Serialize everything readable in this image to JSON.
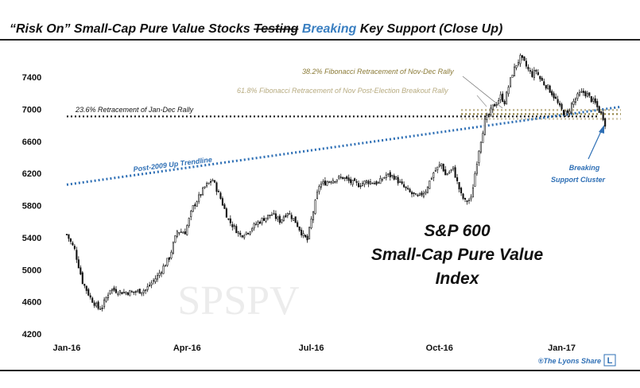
{
  "chart_data": {
    "type": "candlestick",
    "title": {
      "part1": "“Risk On” Small-Cap Pure Value Stocks ",
      "struck": "Testing",
      "highlight": "Breaking",
      "part2": " Key Support (Close Up)"
    },
    "index_name": [
      "S&P 600",
      "Small-Cap Pure Value",
      "Index"
    ],
    "watermark": "SPSPV",
    "credit": "®The Lyons Share",
    "credit_logo": "L",
    "y_ticks": [
      4200,
      4600,
      5000,
      5400,
      5800,
      6200,
      6600,
      7000,
      7400
    ],
    "ylim": [
      4120,
      7720
    ],
    "x_ticks": [
      "Jan-16",
      "Apr-16",
      "Jul-16",
      "Oct-16",
      "Jan-17"
    ],
    "x_anchor_points": [
      {
        "label": "Jan-16",
        "value": 0
      },
      {
        "label": "Apr-16",
        "value": 61
      },
      {
        "label": "Jul-16",
        "value": 124
      },
      {
        "label": "Oct-16",
        "value": 189
      },
      {
        "label": "Jan-17",
        "value": 251
      }
    ],
    "x_range": [
      -2,
      281
    ],
    "price_path": [
      [
        0,
        5440
      ],
      [
        4,
        5250
      ],
      [
        8,
        4850
      ],
      [
        12,
        4650
      ],
      [
        16,
        4520
      ],
      [
        18,
        4540
      ],
      [
        22,
        4760
      ],
      [
        28,
        4720
      ],
      [
        34,
        4720
      ],
      [
        40,
        4750
      ],
      [
        46,
        4920
      ],
      [
        52,
        5150
      ],
      [
        56,
        5480
      ],
      [
        60,
        5470
      ],
      [
        64,
        5780
      ],
      [
        70,
        6030
      ],
      [
        74,
        6120
      ],
      [
        78,
        5890
      ],
      [
        82,
        5620
      ],
      [
        88,
        5430
      ],
      [
        92,
        5480
      ],
      [
        96,
        5570
      ],
      [
        100,
        5640
      ],
      [
        104,
        5690
      ],
      [
        108,
        5610
      ],
      [
        112,
        5720
      ],
      [
        116,
        5600
      ],
      [
        120,
        5420
      ],
      [
        122,
        5370
      ],
      [
        124,
        5620
      ],
      [
        128,
        6050
      ],
      [
        134,
        6120
      ],
      [
        140,
        6150
      ],
      [
        144,
        6090
      ],
      [
        148,
        6060
      ],
      [
        152,
        6100
      ],
      [
        158,
        6080
      ],
      [
        162,
        6180
      ],
      [
        166,
        6160
      ],
      [
        170,
        6050
      ],
      [
        174,
        5960
      ],
      [
        178,
        5900
      ],
      [
        182,
        5990
      ],
      [
        186,
        6210
      ],
      [
        190,
        6320
      ],
      [
        192,
        6180
      ],
      [
        196,
        6260
      ],
      [
        198,
        6090
      ],
      [
        200,
        5930
      ],
      [
        202,
        5850
      ],
      [
        205,
        5880
      ],
      [
        207,
        6200
      ],
      [
        209,
        6500
      ],
      [
        210,
        6620
      ],
      [
        212,
        6850
      ],
      [
        214,
        6930
      ],
      [
        216,
        7030
      ],
      [
        218,
        7080
      ],
      [
        220,
        7160
      ],
      [
        222,
        7090
      ],
      [
        224,
        7280
      ],
      [
        226,
        7450
      ],
      [
        228,
        7560
      ],
      [
        230,
        7640
      ],
      [
        232,
        7580
      ],
      [
        234,
        7490
      ],
      [
        236,
        7430
      ],
      [
        238,
        7480
      ],
      [
        240,
        7380
      ],
      [
        242,
        7320
      ],
      [
        244,
        7270
      ],
      [
        246,
        7200
      ],
      [
        248,
        7120
      ],
      [
        250,
        7020
      ],
      [
        252,
        6960
      ],
      [
        254,
        6940
      ],
      [
        256,
        7060
      ],
      [
        258,
        7130
      ],
      [
        260,
        7190
      ],
      [
        262,
        7210
      ],
      [
        264,
        7180
      ],
      [
        266,
        7120
      ],
      [
        268,
        7070
      ],
      [
        270,
        6980
      ],
      [
        272,
        6900
      ],
      [
        273,
        6820
      ]
    ],
    "trendline": {
      "label": "Post-2009 Up Trendline",
      "points": [
        [
          0,
          6060
        ],
        [
          281,
          7030
        ]
      ],
      "color": "#2e6fb5"
    },
    "support_lines": [
      {
        "label": "23.6% Retracement of Jan-Dec Rally",
        "value": 6910,
        "color": "#111111",
        "x_start": 0,
        "x_end": 270
      },
      {
        "label": "38.2% Fibonacci Retracement of Nov-Dec Rally",
        "value": 6940,
        "color": "#8a7a36",
        "x_start": 200,
        "x_end": 281
      },
      {
        "label": "61.8% Fibonacci Retracement of Nov Post-Election Breakout Rally",
        "value": 6990,
        "color": "#b7ab80",
        "x_start": 200,
        "x_end": 281
      },
      {
        "label": "",
        "value": 6880,
        "color": "#c9bfa0",
        "x_start": 200,
        "x_end": 281
      }
    ],
    "callout": {
      "label": [
        "Breaking",
        "Support Cluster"
      ],
      "color": "#2e6fb5",
      "x": 273,
      "value": 6820
    },
    "colors": {
      "highlight": "#3a7fc1",
      "candle_up": "#ffffff",
      "candle_down": "#111111",
      "title_text": "#111111",
      "rule": "#222222",
      "watermark": "#ececec"
    },
    "grid": false,
    "legend": "none"
  }
}
